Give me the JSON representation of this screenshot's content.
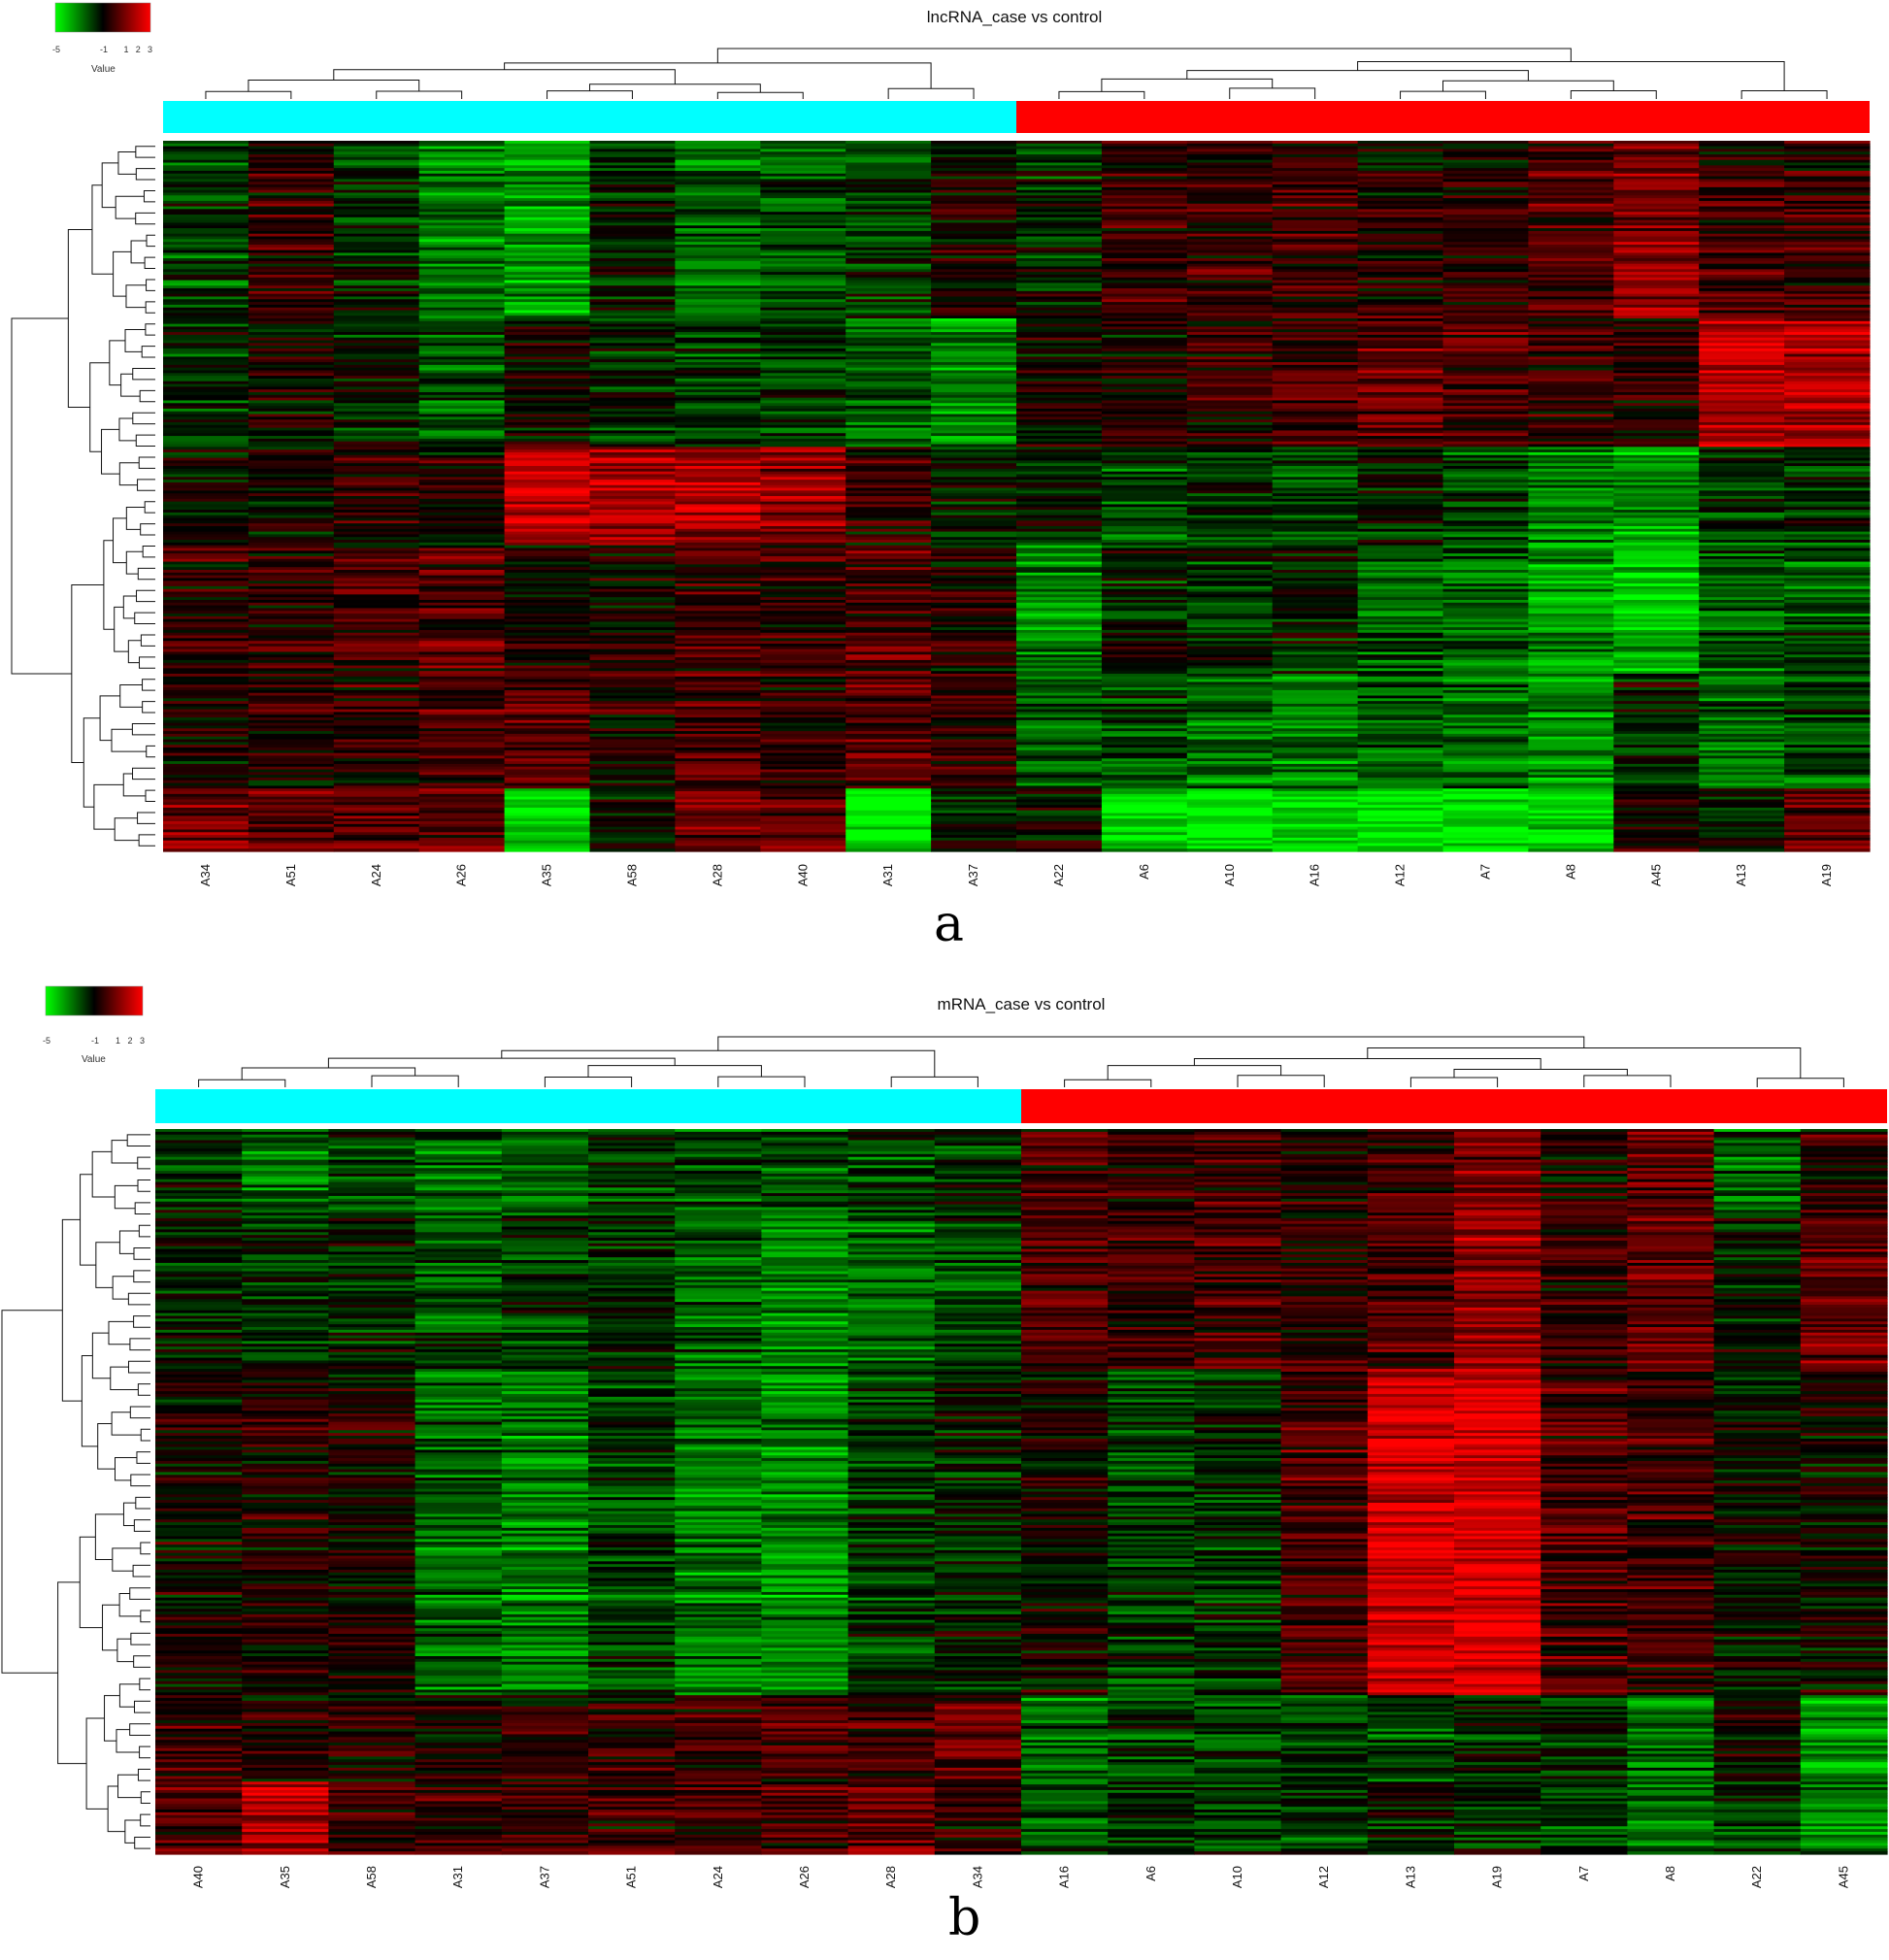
{
  "color_key": {
    "ticks": [
      "-5",
      "-1",
      "1",
      "2",
      "3"
    ],
    "label": "Value",
    "colors": {
      "low": "#00ff00",
      "mid": "#000000",
      "high": "#ff0000"
    },
    "range": [
      -5,
      3
    ]
  },
  "group_colors": {
    "control": "#00ffff",
    "case": "#ff0000"
  },
  "chart_data": [
    {
      "type": "heatmap",
      "panel": "a",
      "title": "lncRNA_case vs control",
      "columns": [
        "A34",
        "A51",
        "A24",
        "A26",
        "A35",
        "A58",
        "A28",
        "A40",
        "A31",
        "A37",
        "A22",
        "A6",
        "A10",
        "A16",
        "A12",
        "A7",
        "A8",
        "A45",
        "A13",
        "A19"
      ],
      "groups": [
        "control",
        "control",
        "control",
        "control",
        "control",
        "control",
        "control",
        "control",
        "control",
        "control",
        "case",
        "case",
        "case",
        "case",
        "case",
        "case",
        "case",
        "case",
        "case",
        "case"
      ],
      "row_dendrogram": true,
      "column_dendrogram": true,
      "blocks": [
        {
          "rows": [
            0.0,
            0.25
          ],
          "values": [
            -0.6,
            0.4,
            -0.4,
            -1.2,
            -1.5,
            -0.3,
            -1.0,
            -0.8,
            -0.5,
            0.2,
            -0.3,
            0.6,
            0.5,
            0.6,
            0.3,
            0.4,
            0.7,
            1.3,
            0.5,
            0.6
          ]
        },
        {
          "rows": [
            0.25,
            0.43
          ],
          "values": [
            -0.4,
            0.1,
            -0.2,
            -0.8,
            0.1,
            -0.3,
            -0.6,
            -0.5,
            -0.9,
            -1.3,
            0.2,
            0.2,
            0.4,
            0.6,
            1.0,
            0.7,
            0.5,
            0.3,
            1.8,
            1.7
          ]
        },
        {
          "rows": [
            0.43,
            0.57
          ],
          "values": [
            -0.2,
            0.1,
            0.3,
            0.2,
            1.8,
            1.6,
            1.7,
            1.4,
            0.3,
            -0.2,
            -0.4,
            -0.8,
            -0.6,
            -0.8,
            -0.3,
            -0.7,
            -1.3,
            -1.5,
            -0.6,
            -0.5
          ]
        },
        {
          "rows": [
            0.57,
            0.75
          ],
          "values": [
            0.4,
            0.3,
            0.6,
            0.8,
            0.1,
            0.2,
            0.6,
            0.4,
            0.7,
            0.3,
            -1.2,
            -0.3,
            -0.4,
            -0.3,
            -0.9,
            -1.0,
            -1.4,
            -1.9,
            -0.8,
            -0.7
          ]
        },
        {
          "rows": [
            0.75,
            0.91
          ],
          "values": [
            0.3,
            0.4,
            0.5,
            0.7,
            1.0,
            0.3,
            0.8,
            0.5,
            0.9,
            0.6,
            -0.8,
            -0.6,
            -1.0,
            -1.1,
            -0.8,
            -0.9,
            -1.3,
            -0.2,
            -0.9,
            -0.7
          ]
        },
        {
          "rows": [
            0.91,
            1.0
          ],
          "values": [
            1.2,
            1.0,
            1.0,
            0.9,
            -2.2,
            0.0,
            1.0,
            0.9,
            -2.5,
            -0.1,
            0.2,
            -2.1,
            -2.2,
            -2.0,
            -2.3,
            -2.3,
            -2.1,
            0.1,
            -0.2,
            1.0
          ]
        }
      ]
    },
    {
      "type": "heatmap",
      "panel": "b",
      "title": "mRNA_case vs control",
      "columns": [
        "A40",
        "A35",
        "A58",
        "A31",
        "A37",
        "A51",
        "A24",
        "A26",
        "A28",
        "A34",
        "A16",
        "A6",
        "A10",
        "A12",
        "A13",
        "A19",
        "A7",
        "A8",
        "A22",
        "A45"
      ],
      "groups": [
        "control",
        "control",
        "control",
        "control",
        "control",
        "control",
        "control",
        "control",
        "control",
        "control",
        "case",
        "case",
        "case",
        "case",
        "case",
        "case",
        "case",
        "case",
        "case",
        "case"
      ],
      "row_dendrogram": true,
      "column_dendrogram": true,
      "blocks": [
        {
          "rows": [
            0.0,
            0.12
          ],
          "values": [
            -0.3,
            -1.0,
            -0.6,
            -1.0,
            -0.8,
            -0.5,
            -0.7,
            -0.9,
            -0.6,
            -0.4,
            0.6,
            0.4,
            0.5,
            0.3,
            0.6,
            1.2,
            0.3,
            1.0,
            -0.8,
            0.4
          ]
        },
        {
          "rows": [
            0.12,
            0.33
          ],
          "values": [
            -0.2,
            -0.4,
            -0.3,
            -0.8,
            -0.5,
            -0.3,
            -0.9,
            -1.2,
            -1.0,
            -0.6,
            0.8,
            0.5,
            0.6,
            0.4,
            0.7,
            1.4,
            0.5,
            1.0,
            -0.2,
            1.0
          ]
        },
        {
          "rows": [
            0.33,
            0.78
          ],
          "values": [
            0.1,
            0.3,
            0.2,
            -0.9,
            -1.2,
            -0.6,
            -1.2,
            -1.3,
            -0.5,
            -0.2,
            0.2,
            -0.5,
            -0.4,
            0.7,
            2.0,
            2.2,
            0.7,
            0.6,
            -0.1,
            0.1
          ]
        },
        {
          "rows": [
            0.78,
            0.9
          ],
          "values": [
            0.6,
            0.2,
            0.3,
            0.2,
            0.4,
            0.5,
            0.5,
            0.6,
            0.5,
            0.8,
            -1.0,
            -0.6,
            -0.7,
            -0.6,
            -0.6,
            -0.3,
            -0.4,
            -1.1,
            0.0,
            -1.5
          ]
        },
        {
          "rows": [
            0.9,
            1.0
          ],
          "values": [
            0.7,
            1.5,
            0.4,
            0.4,
            0.5,
            0.4,
            0.6,
            0.6,
            1.0,
            0.4,
            -0.8,
            -0.4,
            -0.6,
            -0.6,
            -0.3,
            -0.4,
            -0.5,
            -1.0,
            -0.5,
            -1.3
          ]
        }
      ]
    }
  ],
  "panel_labels": [
    "a",
    "b"
  ]
}
